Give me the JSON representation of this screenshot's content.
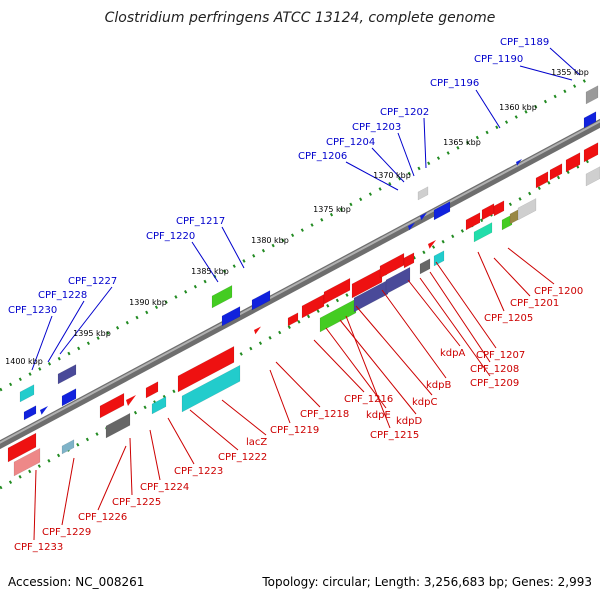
{
  "title": "Clostridium perfringens ATCC 13124, complete genome",
  "accession": "Accession: NC_008261",
  "topology": "Topology: circular; Length: 3,256,683 bp; Genes: 2,993",
  "colors": {
    "forward_label": "#0000cc",
    "reverse_label": "#cc0000",
    "tick": "#228b22",
    "backbone": "#808080"
  },
  "kbp_labels": [
    "1355 kbp",
    "1360 kbp",
    "1365 kbp",
    "1370 kbp",
    "1375 kbp",
    "1380 kbp",
    "1385 kbp",
    "1390 kbp",
    "1395 kbp",
    "1400 kbp"
  ],
  "upper_genes": [
    "CPF_1189",
    "CPF_1190",
    "CPF_1196",
    "CPF_1202",
    "CPF_1203",
    "CPF_1204",
    "CPF_1206",
    "CPF_1217",
    "CPF_1220",
    "CPF_1227",
    "CPF_1228",
    "CPF_1230"
  ],
  "lower_genes": [
    "CPF_1200",
    "CPF_1201",
    "CPF_1205",
    "CPF_1207",
    "CPF_1208",
    "CPF_1209",
    "kdpA",
    "kdpB",
    "kdpC",
    "kdpD",
    "kdpE",
    "CPF_1215",
    "CPF_1216",
    "CPF_1218",
    "CPF_1219",
    "lacZ",
    "CPF_1222",
    "CPF_1223",
    "CPF_1224",
    "CPF_1225",
    "CPF_1226",
    "CPF_1229",
    "CPF_1233"
  ]
}
